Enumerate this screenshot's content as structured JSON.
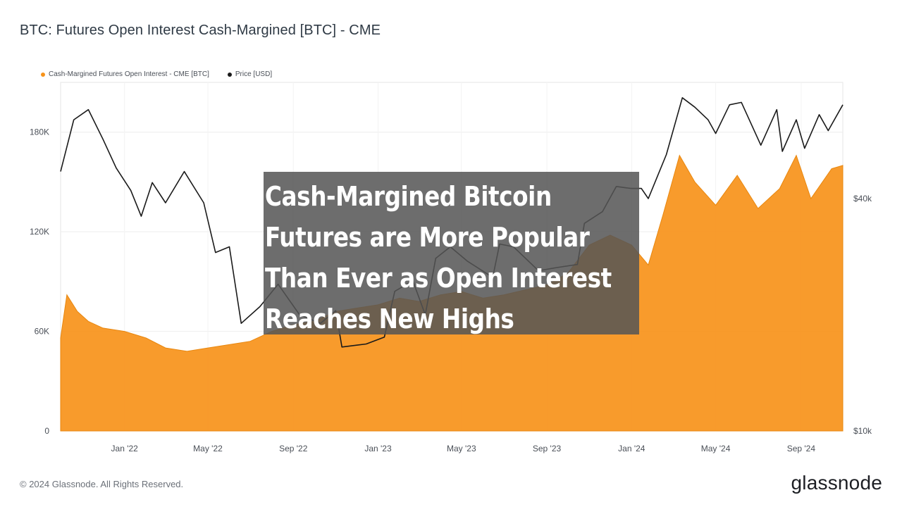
{
  "header": {
    "title": "BTC: Futures Open Interest Cash-Margined [BTC] - CME"
  },
  "overlay": {
    "headline": "Cash-Margined Bitcoin Futures are More Popular Than Ever as Open Interest Reaches New Highs"
  },
  "footer": {
    "copyright": "© 2024 Glassnode. All Rights Reserved.",
    "brand": "glassnode"
  },
  "colors": {
    "oi": "#f7931a",
    "price": "#1a1a1a",
    "grid": "#eeeeee"
  },
  "chart_data": {
    "type": "area",
    "title": "BTC: Futures Open Interest Cash-Margined [BTC] - CME",
    "grid": true,
    "legend_position": "top-left",
    "x_range": [
      "2021-10-01",
      "2024-10-31"
    ],
    "x_ticks": [
      "Jan '22",
      "May '22",
      "Sep '22",
      "Jan '23",
      "May '23",
      "Sep '23",
      "Jan '24",
      "May '24",
      "Sep '24"
    ],
    "y_left": {
      "label": "",
      "ticks": [
        "0",
        "60K",
        "120K",
        "180K"
      ],
      "tick_values": [
        0,
        60000,
        120000,
        180000
      ],
      "range": [
        0,
        210000
      ]
    },
    "y_right": {
      "label": "",
      "scale": "log",
      "ticks": [
        "$10k",
        "$40k"
      ],
      "tick_values": [
        10000,
        40000
      ],
      "range": [
        10000,
        80000
      ]
    },
    "series": [
      {
        "name": "Cash-Margined Futures Open Interest - CME [BTC]",
        "axis": "left",
        "points": [
          [
            "2021-10-01",
            56000
          ],
          [
            "2021-10-10",
            82000
          ],
          [
            "2021-10-25",
            72000
          ],
          [
            "2021-11-10",
            66000
          ],
          [
            "2021-12-01",
            62000
          ],
          [
            "2022-01-01",
            60000
          ],
          [
            "2022-02-01",
            56000
          ],
          [
            "2022-03-01",
            50000
          ],
          [
            "2022-04-01",
            48000
          ],
          [
            "2022-05-01",
            50000
          ],
          [
            "2022-06-01",
            52000
          ],
          [
            "2022-07-01",
            54000
          ],
          [
            "2022-08-01",
            60000
          ],
          [
            "2022-09-01",
            64000
          ],
          [
            "2022-10-01",
            66000
          ],
          [
            "2022-11-01",
            72000
          ],
          [
            "2022-12-01",
            74000
          ],
          [
            "2023-01-01",
            76000
          ],
          [
            "2023-02-01",
            80000
          ],
          [
            "2023-03-01",
            78000
          ],
          [
            "2023-04-01",
            82000
          ],
          [
            "2023-05-01",
            84000
          ],
          [
            "2023-06-01",
            80000
          ],
          [
            "2023-07-01",
            82000
          ],
          [
            "2023-08-01",
            85000
          ],
          [
            "2023-09-01",
            88000
          ],
          [
            "2023-10-01",
            95000
          ],
          [
            "2023-11-01",
            112000
          ],
          [
            "2023-12-01",
            118000
          ],
          [
            "2024-01-01",
            112000
          ],
          [
            "2024-01-25",
            100000
          ],
          [
            "2024-02-15",
            130000
          ],
          [
            "2024-03-10",
            166000
          ],
          [
            "2024-04-01",
            150000
          ],
          [
            "2024-05-01",
            136000
          ],
          [
            "2024-06-01",
            154000
          ],
          [
            "2024-07-01",
            134000
          ],
          [
            "2024-08-01",
            146000
          ],
          [
            "2024-08-25",
            166000
          ],
          [
            "2024-09-15",
            140000
          ],
          [
            "2024-10-15",
            158000
          ],
          [
            "2024-10-31",
            160000
          ]
        ]
      },
      {
        "name": "Price [USD]",
        "axis": "right",
        "points": [
          [
            "2021-10-01",
            47000
          ],
          [
            "2021-10-20",
            64000
          ],
          [
            "2021-11-10",
            68000
          ],
          [
            "2021-12-01",
            57000
          ],
          [
            "2021-12-20",
            48000
          ],
          [
            "2022-01-10",
            42000
          ],
          [
            "2022-01-25",
            36000
          ],
          [
            "2022-02-10",
            44000
          ],
          [
            "2022-03-01",
            39000
          ],
          [
            "2022-03-28",
            47000
          ],
          [
            "2022-04-25",
            39000
          ],
          [
            "2022-05-12",
            29000
          ],
          [
            "2022-06-01",
            30000
          ],
          [
            "2022-06-18",
            19000
          ],
          [
            "2022-07-15",
            21000
          ],
          [
            "2022-08-10",
            24000
          ],
          [
            "2022-09-10",
            20000
          ],
          [
            "2022-10-10",
            19000
          ],
          [
            "2022-11-01",
            20500
          ],
          [
            "2022-11-10",
            16500
          ],
          [
            "2022-12-15",
            16800
          ],
          [
            "2023-01-10",
            17500
          ],
          [
            "2023-01-25",
            23000
          ],
          [
            "2023-02-20",
            24500
          ],
          [
            "2023-03-10",
            20000
          ],
          [
            "2023-03-25",
            28000
          ],
          [
            "2023-04-15",
            30000
          ],
          [
            "2023-05-10",
            27500
          ],
          [
            "2023-06-15",
            25000
          ],
          [
            "2023-06-25",
            30500
          ],
          [
            "2023-07-15",
            30000
          ],
          [
            "2023-08-20",
            26000
          ],
          [
            "2023-09-15",
            26500
          ],
          [
            "2023-10-15",
            27000
          ],
          [
            "2023-10-25",
            34500
          ],
          [
            "2023-11-20",
            37000
          ],
          [
            "2023-12-10",
            43000
          ],
          [
            "2023-12-31",
            42500
          ],
          [
            "2024-01-15",
            42500
          ],
          [
            "2024-01-25",
            40000
          ],
          [
            "2024-02-20",
            52000
          ],
          [
            "2024-03-14",
            73000
          ],
          [
            "2024-04-01",
            69000
          ],
          [
            "2024-04-20",
            64000
          ],
          [
            "2024-05-01",
            59000
          ],
          [
            "2024-05-21",
            70000
          ],
          [
            "2024-06-07",
            71000
          ],
          [
            "2024-07-05",
            55000
          ],
          [
            "2024-07-28",
            68000
          ],
          [
            "2024-08-05",
            53000
          ],
          [
            "2024-08-25",
            64000
          ],
          [
            "2024-09-06",
            54000
          ],
          [
            "2024-09-27",
            66000
          ],
          [
            "2024-10-10",
            60000
          ],
          [
            "2024-10-31",
            70000
          ]
        ]
      }
    ]
  }
}
